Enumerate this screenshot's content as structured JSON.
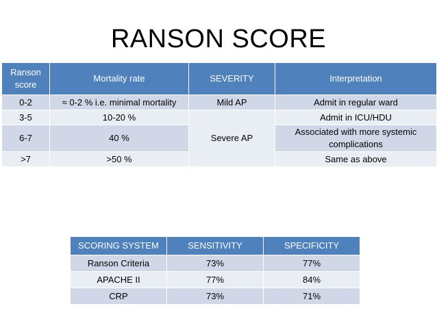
{
  "title": "RANSON SCORE",
  "ranson_table": {
    "headers": [
      "Ranson score",
      "Mortality rate",
      "SEVERITY",
      "Interpretation"
    ],
    "rows": [
      {
        "score": "0-2",
        "mortality": "≈ 0-2 % i.e. minimal mortality",
        "severity": "Mild AP",
        "interpretation": "Admit in regular ward"
      },
      {
        "score": "3-5",
        "mortality": "10-20 %",
        "interpretation": "Admit in ICU/HDU"
      },
      {
        "score": "6-7",
        "mortality": "40 %",
        "interpretation": "Associated with more systemic complications"
      },
      {
        "score": ">7",
        "mortality": ">50 %",
        "interpretation": "Same as above"
      }
    ],
    "merged_severity": "Severe AP"
  },
  "scoring_table": {
    "headers": [
      "SCORING SYSTEM",
      "SENSITIVITY",
      "SPECIFICITY"
    ],
    "rows": [
      {
        "system": "Ranson Criteria",
        "sensitivity": "73%",
        "specificity": "77%"
      },
      {
        "system": "APACHE II",
        "sensitivity": "77%",
        "specificity": "84%"
      },
      {
        "system": "CRP",
        "sensitivity": "73%",
        "specificity": "71%"
      }
    ]
  },
  "colors": {
    "header_bg": "#4f81bd",
    "row_dark": "#d0d8e8",
    "row_light": "#e9edf4"
  }
}
